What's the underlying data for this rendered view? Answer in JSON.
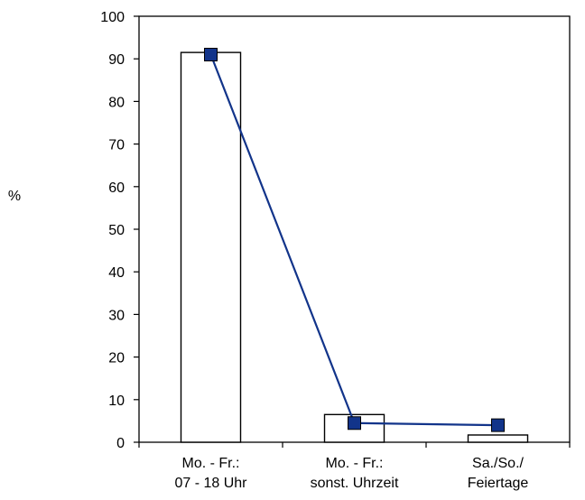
{
  "chart_data": {
    "type": "bar",
    "categories": [
      [
        "Mo. - Fr.:",
        "07 - 18 Uhr"
      ],
      [
        "Mo. - Fr.:",
        "sonst. Uhrzeit"
      ],
      [
        "Sa./So./",
        "Feiertage"
      ]
    ],
    "ylabel": "%",
    "ylim": [
      0,
      100
    ],
    "yticks": [
      0,
      10,
      20,
      30,
      40,
      50,
      60,
      70,
      80,
      90,
      100
    ],
    "grid": false,
    "series": [
      {
        "kind": "bar",
        "values": [
          91.5,
          6.5,
          1.7
        ]
      },
      {
        "kind": "line",
        "values": [
          91,
          4.5,
          4
        ],
        "color": "#12348a",
        "marker": "square"
      }
    ]
  }
}
